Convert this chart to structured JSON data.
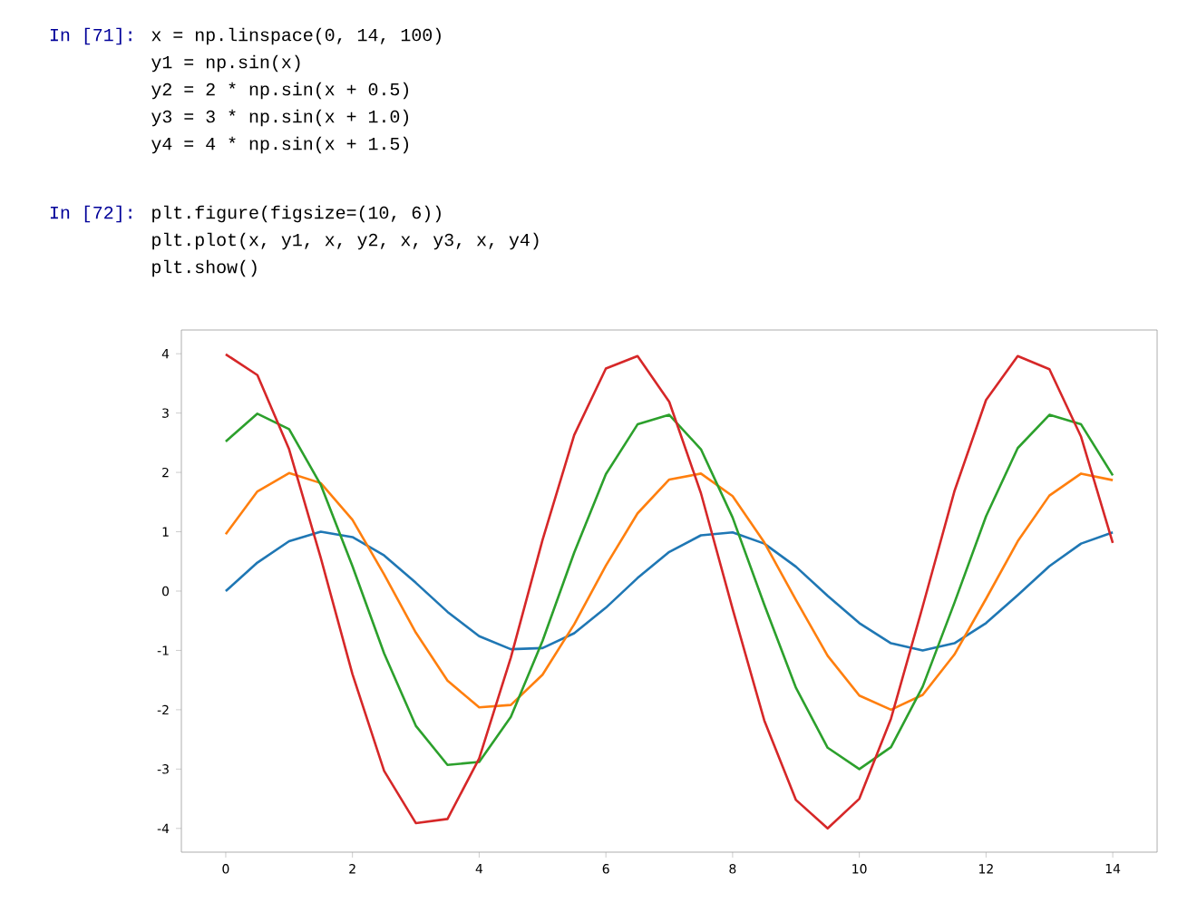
{
  "chart_data": {
    "type": "line",
    "x": [
      0,
      0.5,
      1,
      1.5,
      2,
      2.5,
      3,
      3.5,
      4,
      4.5,
      5,
      5.5,
      6,
      6.5,
      7,
      7.5,
      8,
      8.5,
      9,
      9.5,
      10,
      10.5,
      11,
      11.5,
      12,
      12.5,
      13,
      13.5,
      14
    ],
    "series": [
      {
        "color": "#1f77b4",
        "values": [
          0,
          0.48,
          0.84,
          1.0,
          0.91,
          0.6,
          0.14,
          -0.35,
          -0.76,
          -0.98,
          -0.96,
          -0.71,
          -0.28,
          0.22,
          0.66,
          0.94,
          0.99,
          0.8,
          0.41,
          -0.08,
          -0.54,
          -0.88,
          -1.0,
          -0.88,
          -0.54,
          -0.07,
          0.42,
          0.8,
          0.99
        ]
      },
      {
        "color": "#ff7f0e",
        "values": [
          0.96,
          1.68,
          1.99,
          1.82,
          1.2,
          0.28,
          -0.7,
          -1.51,
          -1.96,
          -1.92,
          -1.41,
          -0.56,
          0.43,
          1.31,
          1.88,
          1.98,
          1.6,
          0.82,
          -0.15,
          -1.09,
          -1.76,
          -2.0,
          -1.75,
          -1.07,
          -0.13,
          0.84,
          1.61,
          1.98,
          1.87
        ]
      },
      {
        "color": "#2ca02c",
        "values": [
          2.52,
          2.99,
          2.73,
          1.79,
          0.42,
          -1.05,
          -2.27,
          -2.93,
          -2.88,
          -2.12,
          -0.84,
          0.65,
          1.97,
          2.81,
          2.97,
          2.39,
          1.24,
          -0.23,
          -1.63,
          -2.64,
          -3.0,
          -2.63,
          -1.61,
          -0.2,
          1.26,
          2.41,
          2.97,
          2.81,
          1.95
        ]
      },
      {
        "color": "#d62728",
        "values": [
          3.99,
          3.64,
          2.39,
          0.56,
          -1.4,
          -3.03,
          -3.91,
          -3.84,
          -2.82,
          -1.12,
          0.86,
          2.63,
          3.75,
          3.96,
          3.19,
          1.65,
          -0.3,
          -2.18,
          -3.52,
          -4.0,
          -3.5,
          -2.15,
          -0.26,
          1.68,
          3.22,
          3.96,
          3.74,
          2.6,
          0.81
        ]
      }
    ],
    "xlim": [
      -0.7,
      14.7
    ],
    "ylim": [
      -4.4,
      4.4
    ],
    "xticks": [
      0,
      2,
      4,
      6,
      8,
      10,
      12,
      14
    ],
    "yticks": [
      -4,
      -3,
      -2,
      -1,
      0,
      1,
      2,
      3,
      4
    ],
    "grid": false,
    "marker": "none",
    "line_style": "solid",
    "annotations": [
      "In [71]:",
      "x = np.linspace(0, 14, 100)",
      "y1 = np.sin(x)",
      "y2 = 2 * np.sin(x + 0.5)",
      "y3 = 3 * np.sin(x + 1.0)",
      "y4 = 4 * np.sin(x + 1.5)",
      "In [72]:",
      "plt.figure(figsize=(10, 6))",
      "plt.plot(x, y1, x, y2, x, y3, x, y4)",
      "plt.show()"
    ]
  }
}
